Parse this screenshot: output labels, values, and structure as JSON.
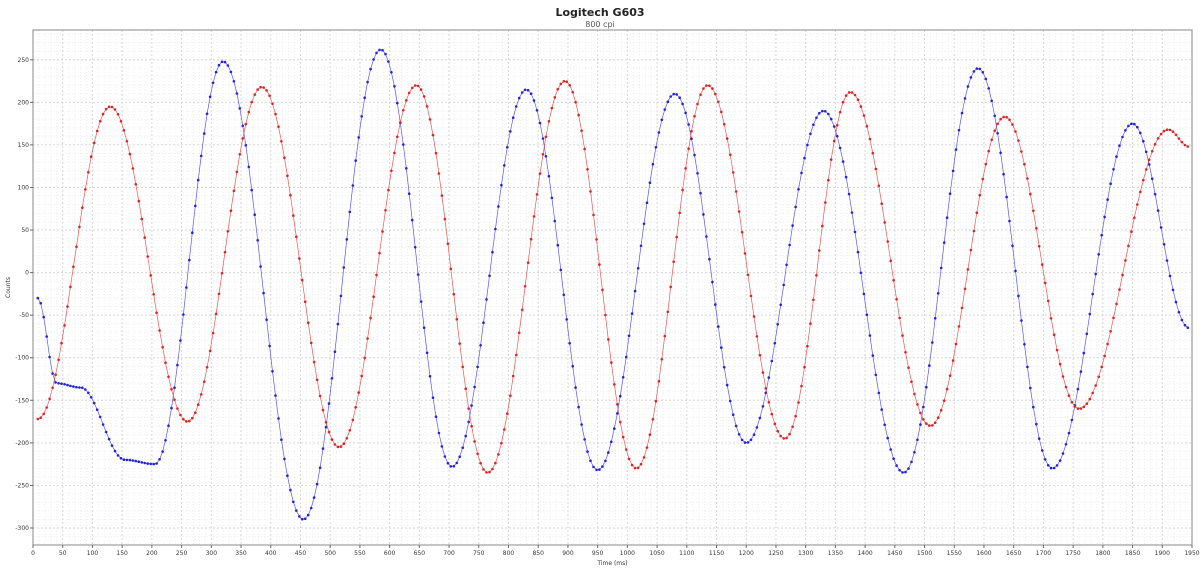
{
  "chart_data": {
    "type": "line",
    "title": "Logitech G603",
    "subtitle": "800 cpi",
    "xlabel": "Time (ms)",
    "ylabel": "Counts",
    "xlim": [
      0,
      1950
    ],
    "ylim": [
      -320,
      285
    ],
    "xticks": [
      0,
      50,
      100,
      150,
      200,
      250,
      300,
      350,
      400,
      450,
      500,
      550,
      600,
      650,
      700,
      750,
      800,
      850,
      900,
      950,
      1000,
      1050,
      1100,
      1150,
      1200,
      1250,
      1300,
      1350,
      1400,
      1450,
      1500,
      1550,
      1600,
      1650,
      1700,
      1750,
      1800,
      1850,
      1900,
      1950
    ],
    "yticks": [
      -300,
      -250,
      -200,
      -150,
      -100,
      -50,
      0,
      50,
      100,
      150,
      200,
      250
    ],
    "grid": true,
    "legend": "none",
    "series": [
      {
        "color": "#2222dd",
        "points": [
          [
            8,
            -30
          ],
          [
            40,
            -130
          ],
          [
            80,
            -135
          ],
          [
            155,
            -220
          ],
          [
            205,
            -225
          ],
          [
            320,
            248
          ],
          [
            455,
            -290
          ],
          [
            585,
            262
          ],
          [
            705,
            -228
          ],
          [
            830,
            215
          ],
          [
            950,
            -232
          ],
          [
            1080,
            210
          ],
          [
            1200,
            -200
          ],
          [
            1330,
            190
          ],
          [
            1465,
            -235
          ],
          [
            1590,
            240
          ],
          [
            1715,
            -230
          ],
          [
            1850,
            175
          ],
          [
            1945,
            -65
          ]
        ]
      },
      {
        "color": "#e02222",
        "points": [
          [
            8,
            -172
          ],
          [
            130,
            195
          ],
          [
            260,
            -175
          ],
          [
            385,
            218
          ],
          [
            515,
            -205
          ],
          [
            645,
            220
          ],
          [
            765,
            -235
          ],
          [
            895,
            225
          ],
          [
            1015,
            -230
          ],
          [
            1135,
            220
          ],
          [
            1265,
            -195
          ],
          [
            1375,
            212
          ],
          [
            1510,
            -180
          ],
          [
            1635,
            183
          ],
          [
            1760,
            -160
          ],
          [
            1910,
            168
          ],
          [
            1945,
            148
          ]
        ]
      }
    ]
  }
}
